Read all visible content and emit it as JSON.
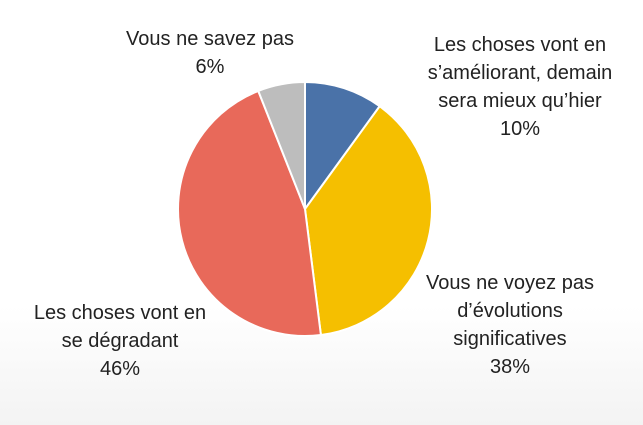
{
  "chart_data": {
    "type": "pie",
    "start_angle_deg": 0,
    "direction": "clockwise",
    "slices": [
      {
        "label": "Les choses vont en s’améliorant, demain sera mieux qu’hier",
        "label_lines": [
          "Les choses vont en",
          "s’améliorant, demain",
          "sera mieux qu’hier"
        ],
        "value": 10,
        "value_label": "10%",
        "color": "#4A72A8"
      },
      {
        "label": "Vous ne voyez pas d’évolutions significatives",
        "label_lines": [
          "Vous ne voyez pas",
          "d’évolutions",
          "significatives"
        ],
        "value": 38,
        "value_label": "38%",
        "color": "#F5BF00"
      },
      {
        "label": "Les choses vont en se dégradant",
        "label_lines": [
          "Les choses vont en",
          "se dégradant"
        ],
        "value": 46,
        "value_label": "46%",
        "color": "#E8695A"
      },
      {
        "label": "Vous ne savez pas",
        "label_lines": [
          "Vous ne savez pas"
        ],
        "value": 6,
        "value_label": "6%",
        "color": "#BDBDBD"
      }
    ]
  }
}
